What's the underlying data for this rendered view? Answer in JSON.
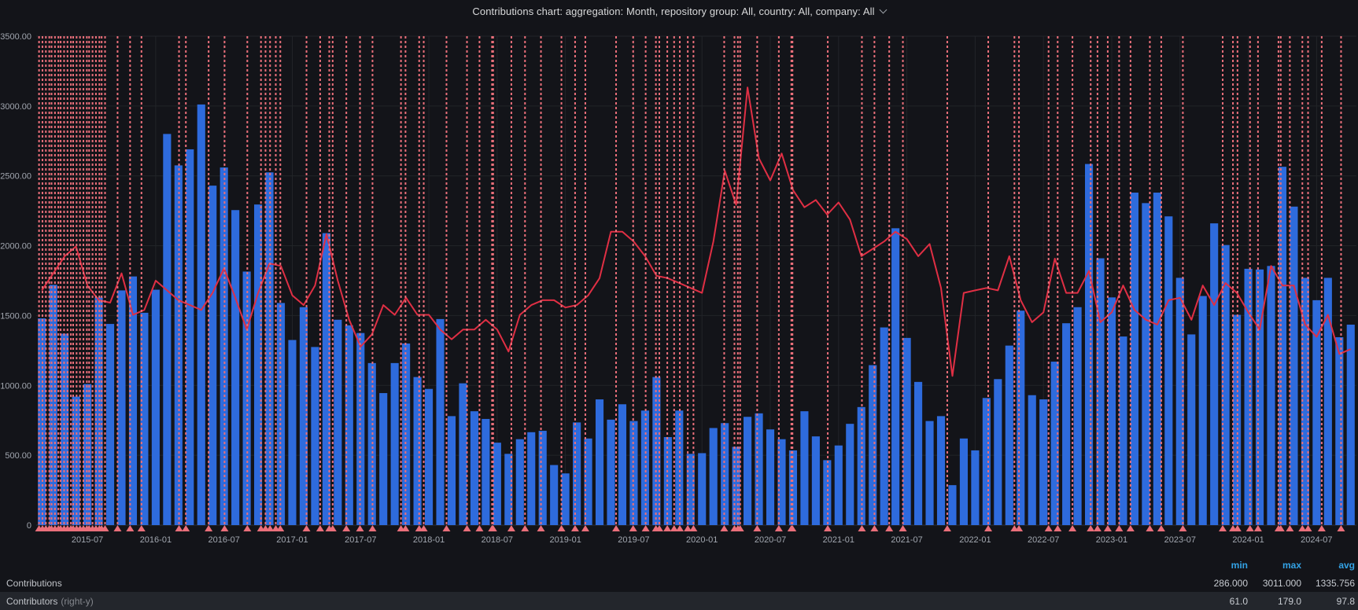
{
  "title": {
    "text": "Contributions chart: aggregation: Month, repository group: All, country: All, company: All",
    "dropdown_icon": "chevron-down"
  },
  "y_axis": {
    "labels": [
      "3500.00",
      "3000.00",
      "2500.00",
      "2000.00",
      "1500.00",
      "1000.00",
      "500.00",
      "0"
    ],
    "min": 0,
    "max": 3500
  },
  "x_axis": {
    "labels": [
      "2015-07",
      "2016-01",
      "2016-07",
      "2017-01",
      "2017-07",
      "2018-01",
      "2018-07",
      "2019-01",
      "2019-07",
      "2020-01",
      "2020-07",
      "2021-01",
      "2021-07",
      "2022-01",
      "2022-07",
      "2023-01",
      "2023-07",
      "2024-01",
      "2024-07"
    ],
    "first_label_month_index": 4,
    "label_step_months": 6
  },
  "legend": {
    "columns": [
      "min",
      "max",
      "avg"
    ],
    "rows": [
      {
        "label": "Contributions",
        "suffix": "",
        "min": "286.000",
        "max": "3011.000",
        "avg": "1335.756"
      },
      {
        "label": "Contributors",
        "suffix": "(right-y)",
        "min": "61.0",
        "max": "179.0",
        "avg": "97.8"
      }
    ]
  },
  "chart_data": {
    "type": "bar+line",
    "title": "Contributions chart: aggregation: Month, repository group: All, country: All, company: All",
    "x_start_month": "2015-03",
    "x_end_month": "2024-10",
    "months_count": 116,
    "left_ylim": [
      0,
      3500
    ],
    "right_ylim": [
      0,
      200
    ],
    "grid": true,
    "legend_position": "bottom",
    "series": [
      {
        "name": "Contributions",
        "type": "bar",
        "axis": "left",
        "stats": {
          "min": 286.0,
          "max": 3011.0,
          "avg": 1335.756
        },
        "values": [
          1480,
          1720,
          1370,
          920,
          1010,
          1630,
          1440,
          1680,
          1780,
          1520,
          1685,
          2800,
          2575,
          2690,
          3011,
          2430,
          2560,
          2255,
          1815,
          2295,
          2525,
          1590,
          1325,
          1560,
          1275,
          2090,
          1470,
          1430,
          1375,
          1160,
          945,
          1160,
          1300,
          1060,
          975,
          1475,
          780,
          1015,
          815,
          760,
          590,
          510,
          615,
          665,
          675,
          430,
          370,
          735,
          620,
          900,
          755,
          865,
          745,
          820,
          1060,
          630,
          820,
          510,
          515,
          695,
          730,
          560,
          775,
          800,
          685,
          615,
          535,
          815,
          635,
          465,
          570,
          725,
          845,
          1145,
          1415,
          2125,
          1340,
          1025,
          745,
          780,
          286,
          620,
          535,
          910,
          1045,
          1285,
          1535,
          930,
          900,
          1170,
          1445,
          1560,
          2585,
          1910,
          1630,
          1350,
          2380,
          2305,
          2380,
          2210,
          1770,
          1365,
          1640,
          2160,
          2005,
          1505,
          1835,
          1830,
          1855,
          2565,
          2280,
          1770,
          1610,
          1770,
          1345,
          1435
        ]
      },
      {
        "name": "Contributors (right-y)",
        "type": "line",
        "axis": "right",
        "stats": {
          "min": 61.0,
          "max": 179.0,
          "avg": 97.8
        },
        "values": [
          96,
          103,
          110,
          114,
          98,
          92,
          91,
          103,
          86,
          88,
          100,
          96,
          92,
          90,
          88,
          95,
          105,
          93,
          80,
          95,
          107,
          106,
          94,
          90,
          98,
          119,
          100,
          84,
          73,
          78,
          90,
          86,
          93,
          86,
          86,
          80,
          76,
          80,
          80,
          84,
          80,
          71,
          86,
          90,
          92,
          92,
          89,
          90,
          94,
          101,
          120,
          120,
          116,
          110,
          102,
          101,
          99,
          97,
          95,
          116,
          145,
          131,
          179,
          150,
          141,
          152,
          137,
          130,
          133,
          127,
          132,
          125,
          110,
          113,
          116,
          120,
          117,
          110,
          115,
          97,
          61,
          95,
          96,
          97,
          96,
          110,
          92,
          83,
          87,
          109,
          95,
          95,
          104,
          83,
          87,
          98,
          88,
          84,
          82,
          92,
          93,
          84,
          98,
          90,
          99,
          95,
          87,
          80,
          106,
          98,
          98,
          82,
          77,
          86,
          70,
          72
        ]
      }
    ],
    "annotations_month_positions": [
      0,
      0.3,
      0.6,
      0.9,
      1.1,
      1.4,
      1.7,
      1.9,
      2.2,
      2.5,
      2.8,
      3,
      3.3,
      3.6,
      3.9,
      4.2,
      4.4,
      4.7,
      5,
      5.3,
      5.5,
      5.8,
      6.9,
      8,
      9,
      12.3,
      12.9,
      14.9,
      16.3,
      18.3,
      19.5,
      19.9,
      20.3,
      20.8,
      21.2,
      23.5,
      24.7,
      25.5,
      25.8,
      27,
      28.2,
      29.3,
      31.8,
      32.2,
      33.4,
      33.8,
      35.8,
      37.6,
      38.7,
      39.8,
      39.9,
      41.5,
      42.7,
      44.1,
      45.9,
      47.1,
      48,
      50.7,
      52.2,
      53.3,
      54.2,
      54.5,
      55.2,
      55.8,
      56.3,
      57,
      57.5,
      60.2,
      61.1,
      61.4,
      61.6,
      63.1,
      65,
      66.1,
      66.2,
      69.3,
      72.3,
      73.4,
      74.7,
      75.9,
      79.8,
      83.4,
      85.7,
      86.1,
      88.7,
      89.5,
      90.8,
      92.4,
      93,
      93.9,
      94.9,
      95.9,
      97.6,
      98.6,
      100.5,
      104,
      104.9,
      105.3,
      106.4,
      107.1,
      108.9,
      109.1,
      109.9,
      111,
      111.5,
      112.7,
      114.4
    ]
  },
  "colors": {
    "background": "#131419",
    "gridline": "#222429",
    "axis_line": "#2c2f36",
    "axis_text": "#a2a7b0",
    "bar": "#2e6bdd",
    "line": "#e02f44",
    "annotation": "#ea6f7a",
    "annotation_marker": "#ea6f7a",
    "stat_header": "#33a2e5",
    "title_text": "#d8d9da"
  }
}
